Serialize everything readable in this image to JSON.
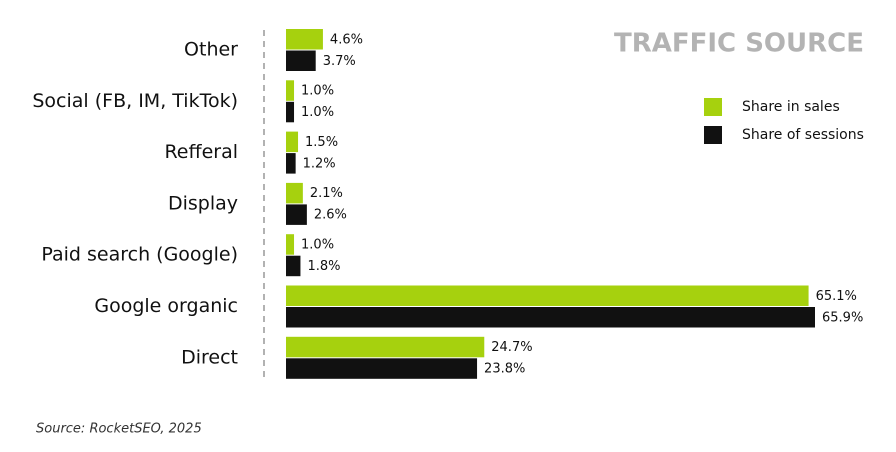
{
  "chart_data": {
    "type": "bar",
    "orientation": "horizontal",
    "title": "TRAFFIC SOURCE",
    "source": "Source: RocketSEO, 2025",
    "categories": [
      "Other",
      "Social (FB, IM, TikTok)",
      "Refferal",
      "Display",
      "Paid search (Google)",
      "Google organic",
      "Direct"
    ],
    "series": [
      {
        "name": "Share in sales",
        "color": "#a6d10e",
        "values": [
          4.6,
          1.0,
          1.5,
          2.1,
          1.0,
          65.1,
          24.7
        ],
        "value_labels": [
          "4.6%",
          "1.0%",
          "1.5%",
          "2.1%",
          "1.0%",
          "65.1%",
          "24.7%"
        ]
      },
      {
        "name": "Share of sessions",
        "color": "#111111",
        "values": [
          3.7,
          1.0,
          1.2,
          2.6,
          1.8,
          65.9,
          23.8
        ],
        "value_labels": [
          "3.7%",
          "1.0%",
          "1.2%",
          "2.6%",
          "1.8%",
          "65.9%",
          "23.8%"
        ]
      }
    ],
    "legend": "upper-right"
  }
}
